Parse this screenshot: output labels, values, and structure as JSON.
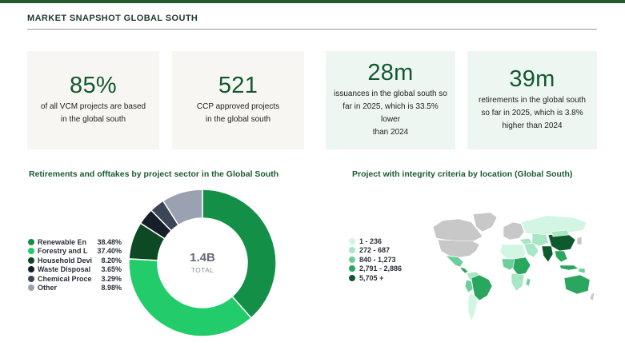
{
  "header": {
    "title": "MARKET SNAPSHOT GLOBAL SOUTH"
  },
  "stats": [
    {
      "value": "85%",
      "desc_line1": "of all VCM projects are based",
      "desc_line2": "in the global south",
      "desc_line3": ""
    },
    {
      "value": "521",
      "desc_line1": "CCP approved projects",
      "desc_line2": "in the global south",
      "desc_line3": ""
    },
    {
      "value": "28m",
      "desc_line1": "issuances in the global south so",
      "desc_line2": "far in 2025, which is 33.5% lower",
      "desc_line3": "than 2024"
    },
    {
      "value": "39m",
      "desc_line1": "retirements in the global south",
      "desc_line2": "so far in 2025, which is 3.8%",
      "desc_line3": "higher than 2024"
    }
  ],
  "donut_section": {
    "title": "Retirements and offtakes by project sector in the Global South",
    "total_value": "1.4B",
    "total_label": "TOTAL",
    "legend": [
      {
        "label": "Renewable Energy",
        "display": "Renewable En",
        "pct": "38.48%",
        "color": "#148f48"
      },
      {
        "label": "Forestry and Land Use",
        "display": "Forestry and L",
        "pct": "37.40%",
        "color": "#22cc6a"
      },
      {
        "label": "Household Devices",
        "display": "Household Devi",
        "pct": "8.20%",
        "color": "#0d4a24"
      },
      {
        "label": "Waste Disposal",
        "display": "Waste Disposal",
        "pct": "3.65%",
        "color": "#161e2a"
      },
      {
        "label": "Chemical Processes",
        "display": "Chemical Proce",
        "pct": "3.29%",
        "color": "#3b4658"
      },
      {
        "label": "Other",
        "display": "Other",
        "pct": "8.98%",
        "color": "#9aa1b1"
      }
    ]
  },
  "chart_data": {
    "type": "pie",
    "title": "Retirements and offtakes by project sector in the Global South",
    "center_label": "1.4B TOTAL",
    "categories": [
      "Renewable Energy",
      "Forestry and Land Use",
      "Household Devices",
      "Waste Disposal",
      "Chemical Processes",
      "Other"
    ],
    "values": [
      38.48,
      37.4,
      8.2,
      3.65,
      3.29,
      8.98
    ],
    "unit": "%",
    "legend_position": "left"
  },
  "map_section": {
    "title": "Project with integrity criteria by location (Global South)",
    "legend": [
      {
        "label": "1 - 236",
        "color": "#d2f5e4"
      },
      {
        "label": "272 - 687",
        "color": "#a8e6c6"
      },
      {
        "label": "840 - 1,273",
        "color": "#6ccf99"
      },
      {
        "label": "2,791 - 2,886",
        "color": "#2aa65e"
      },
      {
        "label": "5,705 +",
        "color": "#0d5a2c"
      }
    ],
    "no_data_color": "#c8c8c8"
  }
}
